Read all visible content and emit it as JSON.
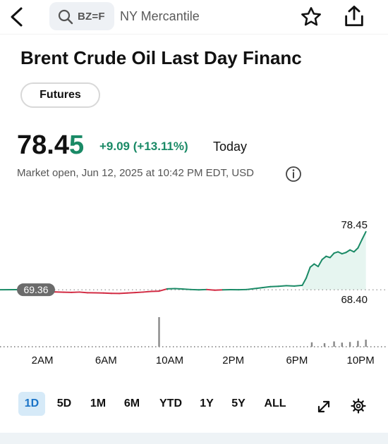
{
  "header": {
    "search_symbol": "BZ=F",
    "exchange": "NY Mercantile",
    "icons": [
      "back-arrow-icon",
      "search-icon",
      "star-icon",
      "share-icon"
    ]
  },
  "quote": {
    "title": "Brent Crude Oil Last Day Financ",
    "tag": "Futures",
    "price_main": "78.4",
    "price_last_digit": "5",
    "change": "+9.09 (+13.11%)",
    "period": "Today",
    "market_status": "Market open, Jun 12, 2025 at 10:42 PM EDT, USD"
  },
  "chart_data": {
    "type": "line",
    "x_tick_labels": [
      "2AM",
      "6AM",
      "10AM",
      "2PM",
      "6PM",
      "10PM"
    ],
    "x_ticks_hours": [
      2,
      6,
      10,
      14,
      18,
      22
    ],
    "baseline": 69.36,
    "baseline_label": "69.36",
    "last_label": "78.45",
    "low_label": "68.40",
    "ylim": [
      66.4,
      79.2
    ],
    "colors": {
      "up": "#1a8a66",
      "down": "#d22b43",
      "fill": "#e3f4ee"
    },
    "points": [
      [
        0.0,
        69.36
      ],
      [
        1.0,
        69.38
      ],
      [
        1.5,
        69.35
      ],
      [
        2.0,
        69.25
      ],
      [
        2.5,
        69.05
      ],
      [
        3.0,
        69.0
      ],
      [
        3.5,
        69.02
      ],
      [
        4.0,
        68.98
      ],
      [
        4.5,
        68.95
      ],
      [
        5.0,
        69.0
      ],
      [
        5.5,
        68.9
      ],
      [
        6.0,
        68.88
      ],
      [
        6.5,
        68.85
      ],
      [
        7.0,
        68.8
      ],
      [
        7.5,
        68.78
      ],
      [
        8.0,
        68.85
      ],
      [
        8.5,
        68.92
      ],
      [
        9.0,
        69.0
      ],
      [
        9.5,
        69.1
      ],
      [
        10.0,
        69.15
      ],
      [
        10.5,
        69.5
      ],
      [
        11.0,
        69.55
      ],
      [
        11.5,
        69.48
      ],
      [
        12.0,
        69.4
      ],
      [
        12.5,
        69.35
      ],
      [
        13.0,
        69.4
      ],
      [
        13.5,
        69.3
      ],
      [
        14.0,
        69.35
      ],
      [
        14.5,
        69.38
      ],
      [
        15.0,
        69.36
      ],
      [
        15.5,
        69.4
      ],
      [
        16.0,
        69.55
      ],
      [
        16.5,
        69.7
      ],
      [
        17.0,
        69.85
      ],
      [
        17.5,
        69.9
      ],
      [
        18.0,
        70.0
      ],
      [
        18.5,
        69.95
      ],
      [
        19.0,
        70.05
      ],
      [
        19.25,
        71.2
      ],
      [
        19.5,
        72.9
      ],
      [
        19.75,
        73.4
      ],
      [
        20.0,
        73.0
      ],
      [
        20.25,
        74.1
      ],
      [
        20.5,
        74.6
      ],
      [
        20.75,
        74.4
      ],
      [
        21.0,
        75.1
      ],
      [
        21.25,
        75.3
      ],
      [
        21.5,
        75.0
      ],
      [
        21.75,
        75.2
      ],
      [
        22.0,
        75.6
      ],
      [
        22.25,
        75.3
      ],
      [
        22.5,
        75.9
      ],
      [
        22.75,
        77.2
      ],
      [
        23.0,
        78.45
      ]
    ],
    "volume": [
      [
        10.0,
        100
      ],
      [
        19.6,
        15
      ],
      [
        20.4,
        12
      ],
      [
        21.0,
        18
      ],
      [
        21.5,
        14
      ],
      [
        22.0,
        16
      ],
      [
        22.5,
        20
      ],
      [
        23.0,
        24
      ]
    ]
  },
  "ranges": {
    "items": [
      "1D",
      "5D",
      "1M",
      "6M",
      "YTD",
      "1Y",
      "5Y",
      "ALL"
    ],
    "selected": "1D"
  },
  "toolbar_icons": [
    "expand-icon",
    "settings-icon"
  ]
}
